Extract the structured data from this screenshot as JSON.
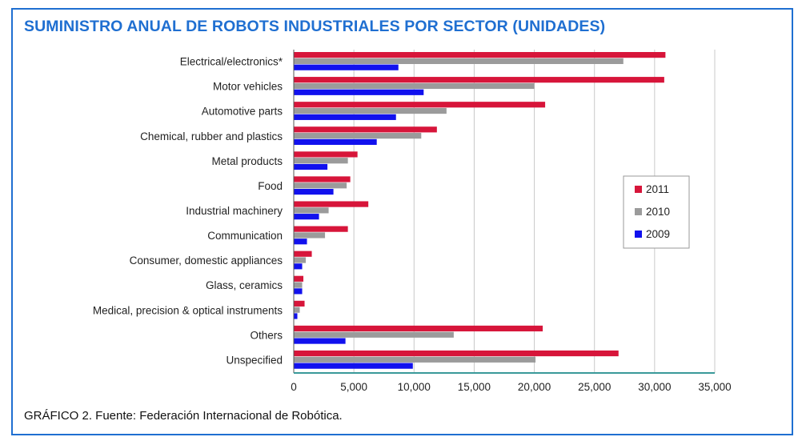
{
  "title": "SUMINISTRO ANUAL DE ROBOTS INDUSTRIALES POR SECTOR (UNIDADES)",
  "caption": "GRÁFICO 2. Fuente: Federación Internacional de Robótica.",
  "colors": {
    "frame": "#1f6fd1",
    "title": "#1f6fd1",
    "axis": "#3a9a9a",
    "grid": "#c8c8c8"
  },
  "chart_data": {
    "type": "bar",
    "orientation": "horizontal",
    "categories": [
      "Electrical/electronics*",
      "Motor vehicles",
      "Automotive parts",
      "Chemical, rubber and plastics",
      "Metal products",
      "Food",
      "Industrial machinery",
      "Communication",
      "Consumer, domestic appliances",
      "Glass, ceramics",
      "Medical, precision & optical instruments",
      "Others",
      "Unspecified"
    ],
    "series": [
      {
        "name": "2011",
        "color": "#d7153a",
        "values": [
          30900,
          30800,
          20900,
          11900,
          5300,
          4700,
          6200,
          4500,
          1500,
          800,
          900,
          20700,
          27000
        ]
      },
      {
        "name": "2010",
        "color": "#9b9b9b",
        "values": [
          27400,
          20000,
          12700,
          10600,
          4500,
          4400,
          2900,
          2600,
          1000,
          700,
          500,
          13300,
          20100
        ]
      },
      {
        "name": "2009",
        "color": "#1111ee",
        "values": [
          8700,
          10800,
          8500,
          6900,
          2800,
          3300,
          2100,
          1100,
          700,
          700,
          300,
          4300,
          9900
        ]
      }
    ],
    "xlim": [
      0,
      35000
    ],
    "xticks": [
      "0",
      "5,000",
      "10,000",
      "15,000",
      "20,000",
      "25,000",
      "30,000",
      "35,000"
    ],
    "xtick_values": [
      0,
      5000,
      10000,
      15000,
      20000,
      25000,
      30000,
      35000
    ],
    "grid": true,
    "legend": {
      "position": "right",
      "order": [
        "2011",
        "2010",
        "2009"
      ]
    }
  }
}
